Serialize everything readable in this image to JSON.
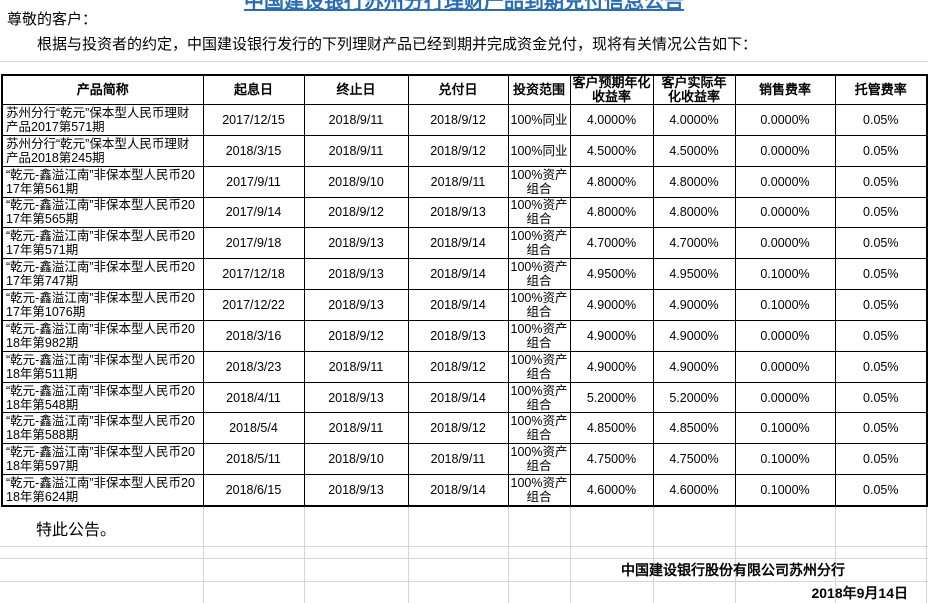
{
  "document": {
    "title": "中国建设银行苏州分行理财产品到期兑付信息公告",
    "greeting": "尊敬的客户：",
    "intro": "根据与投资者的约定，中国建设银行发行的下列理财产品已经到期并完成资金兑付，现将有关情况公告如下：",
    "closing": "特此公告。",
    "signature": "中国建设银行股份有限公司苏州分行",
    "date": "2018年9月14日"
  },
  "colors": {
    "title_blue": "#2a6db6",
    "table_border": "#000000",
    "gridline_gray": "#d4d4d4"
  },
  "table": {
    "headers": [
      "产品简称",
      "起息日",
      "终止日",
      "兑付日",
      "投资范围",
      "客户预期年化收益率",
      "客户实际年化收益率",
      "销售费率",
      "托管费率"
    ],
    "rows": [
      [
        "苏州分行“乾元”保本型人民币理财产品2017第571期",
        "2017/12/15",
        "2018/9/11",
        "2018/9/12",
        "100%同业",
        "4.0000%",
        "4.0000%",
        "0.0000%",
        "0.05%"
      ],
      [
        "苏州分行“乾元”保本型人民币理财产品2018第245期",
        "2018/3/15",
        "2018/9/11",
        "2018/9/12",
        "100%同业",
        "4.5000%",
        "4.5000%",
        "0.0000%",
        "0.05%"
      ],
      [
        "“乾元-鑫溢江南”非保本型人民币2017年第561期",
        "2017/9/11",
        "2018/9/10",
        "2018/9/11",
        "100%资产组合",
        "4.8000%",
        "4.8000%",
        "0.0000%",
        "0.05%"
      ],
      [
        "“乾元-鑫溢江南”非保本型人民币2017年第565期",
        "2017/9/14",
        "2018/9/12",
        "2018/9/13",
        "100%资产组合",
        "4.8000%",
        "4.8000%",
        "0.0000%",
        "0.05%"
      ],
      [
        "“乾元-鑫溢江南”非保本型人民币2017年第571期",
        "2017/9/18",
        "2018/9/13",
        "2018/9/14",
        "100%资产组合",
        "4.7000%",
        "4.7000%",
        "0.0000%",
        "0.05%"
      ],
      [
        "“乾元-鑫溢江南”非保本型人民币2017年第747期",
        "2017/12/18",
        "2018/9/13",
        "2018/9/14",
        "100%资产组合",
        "4.9500%",
        "4.9500%",
        "0.1000%",
        "0.05%"
      ],
      [
        "“乾元-鑫溢江南”非保本型人民币2017年第1076期",
        "2017/12/22",
        "2018/9/13",
        "2018/9/14",
        "100%资产组合",
        "4.9000%",
        "4.9000%",
        "0.1000%",
        "0.05%"
      ],
      [
        "“乾元-鑫溢江南”非保本型人民币2018年第982期",
        "2018/3/16",
        "2018/9/12",
        "2018/9/13",
        "100%资产组合",
        "4.9000%",
        "4.9000%",
        "0.0000%",
        "0.05%"
      ],
      [
        "“乾元-鑫溢江南”非保本型人民币2018年第511期",
        "2018/3/23",
        "2018/9/11",
        "2018/9/12",
        "100%资产组合",
        "4.9000%",
        "4.9000%",
        "0.0000%",
        "0.05%"
      ],
      [
        "“乾元-鑫溢江南”非保本型人民币2018年第548期",
        "2018/4/11",
        "2018/9/13",
        "2018/9/14",
        "100%资产组合",
        "5.2000%",
        "5.2000%",
        "0.0000%",
        "0.05%"
      ],
      [
        "“乾元-鑫溢江南”非保本型人民币2018年第588期",
        "2018/5/4",
        "2018/9/11",
        "2018/9/12",
        "100%资产组合",
        "4.8500%",
        "4.8500%",
        "0.1000%",
        "0.05%"
      ],
      [
        "“乾元-鑫溢江南”非保本型人民币2018年第597期",
        "2018/5/11",
        "2018/9/10",
        "2018/9/11",
        "100%资产组合",
        "4.7500%",
        "4.7500%",
        "0.1000%",
        "0.05%"
      ],
      [
        "“乾元-鑫溢江南”非保本型人民币2018年第624期",
        "2018/6/15",
        "2018/9/13",
        "2018/9/14",
        "100%资产组合",
        "4.6000%",
        "4.6000%",
        "0.1000%",
        "0.05%"
      ]
    ]
  }
}
